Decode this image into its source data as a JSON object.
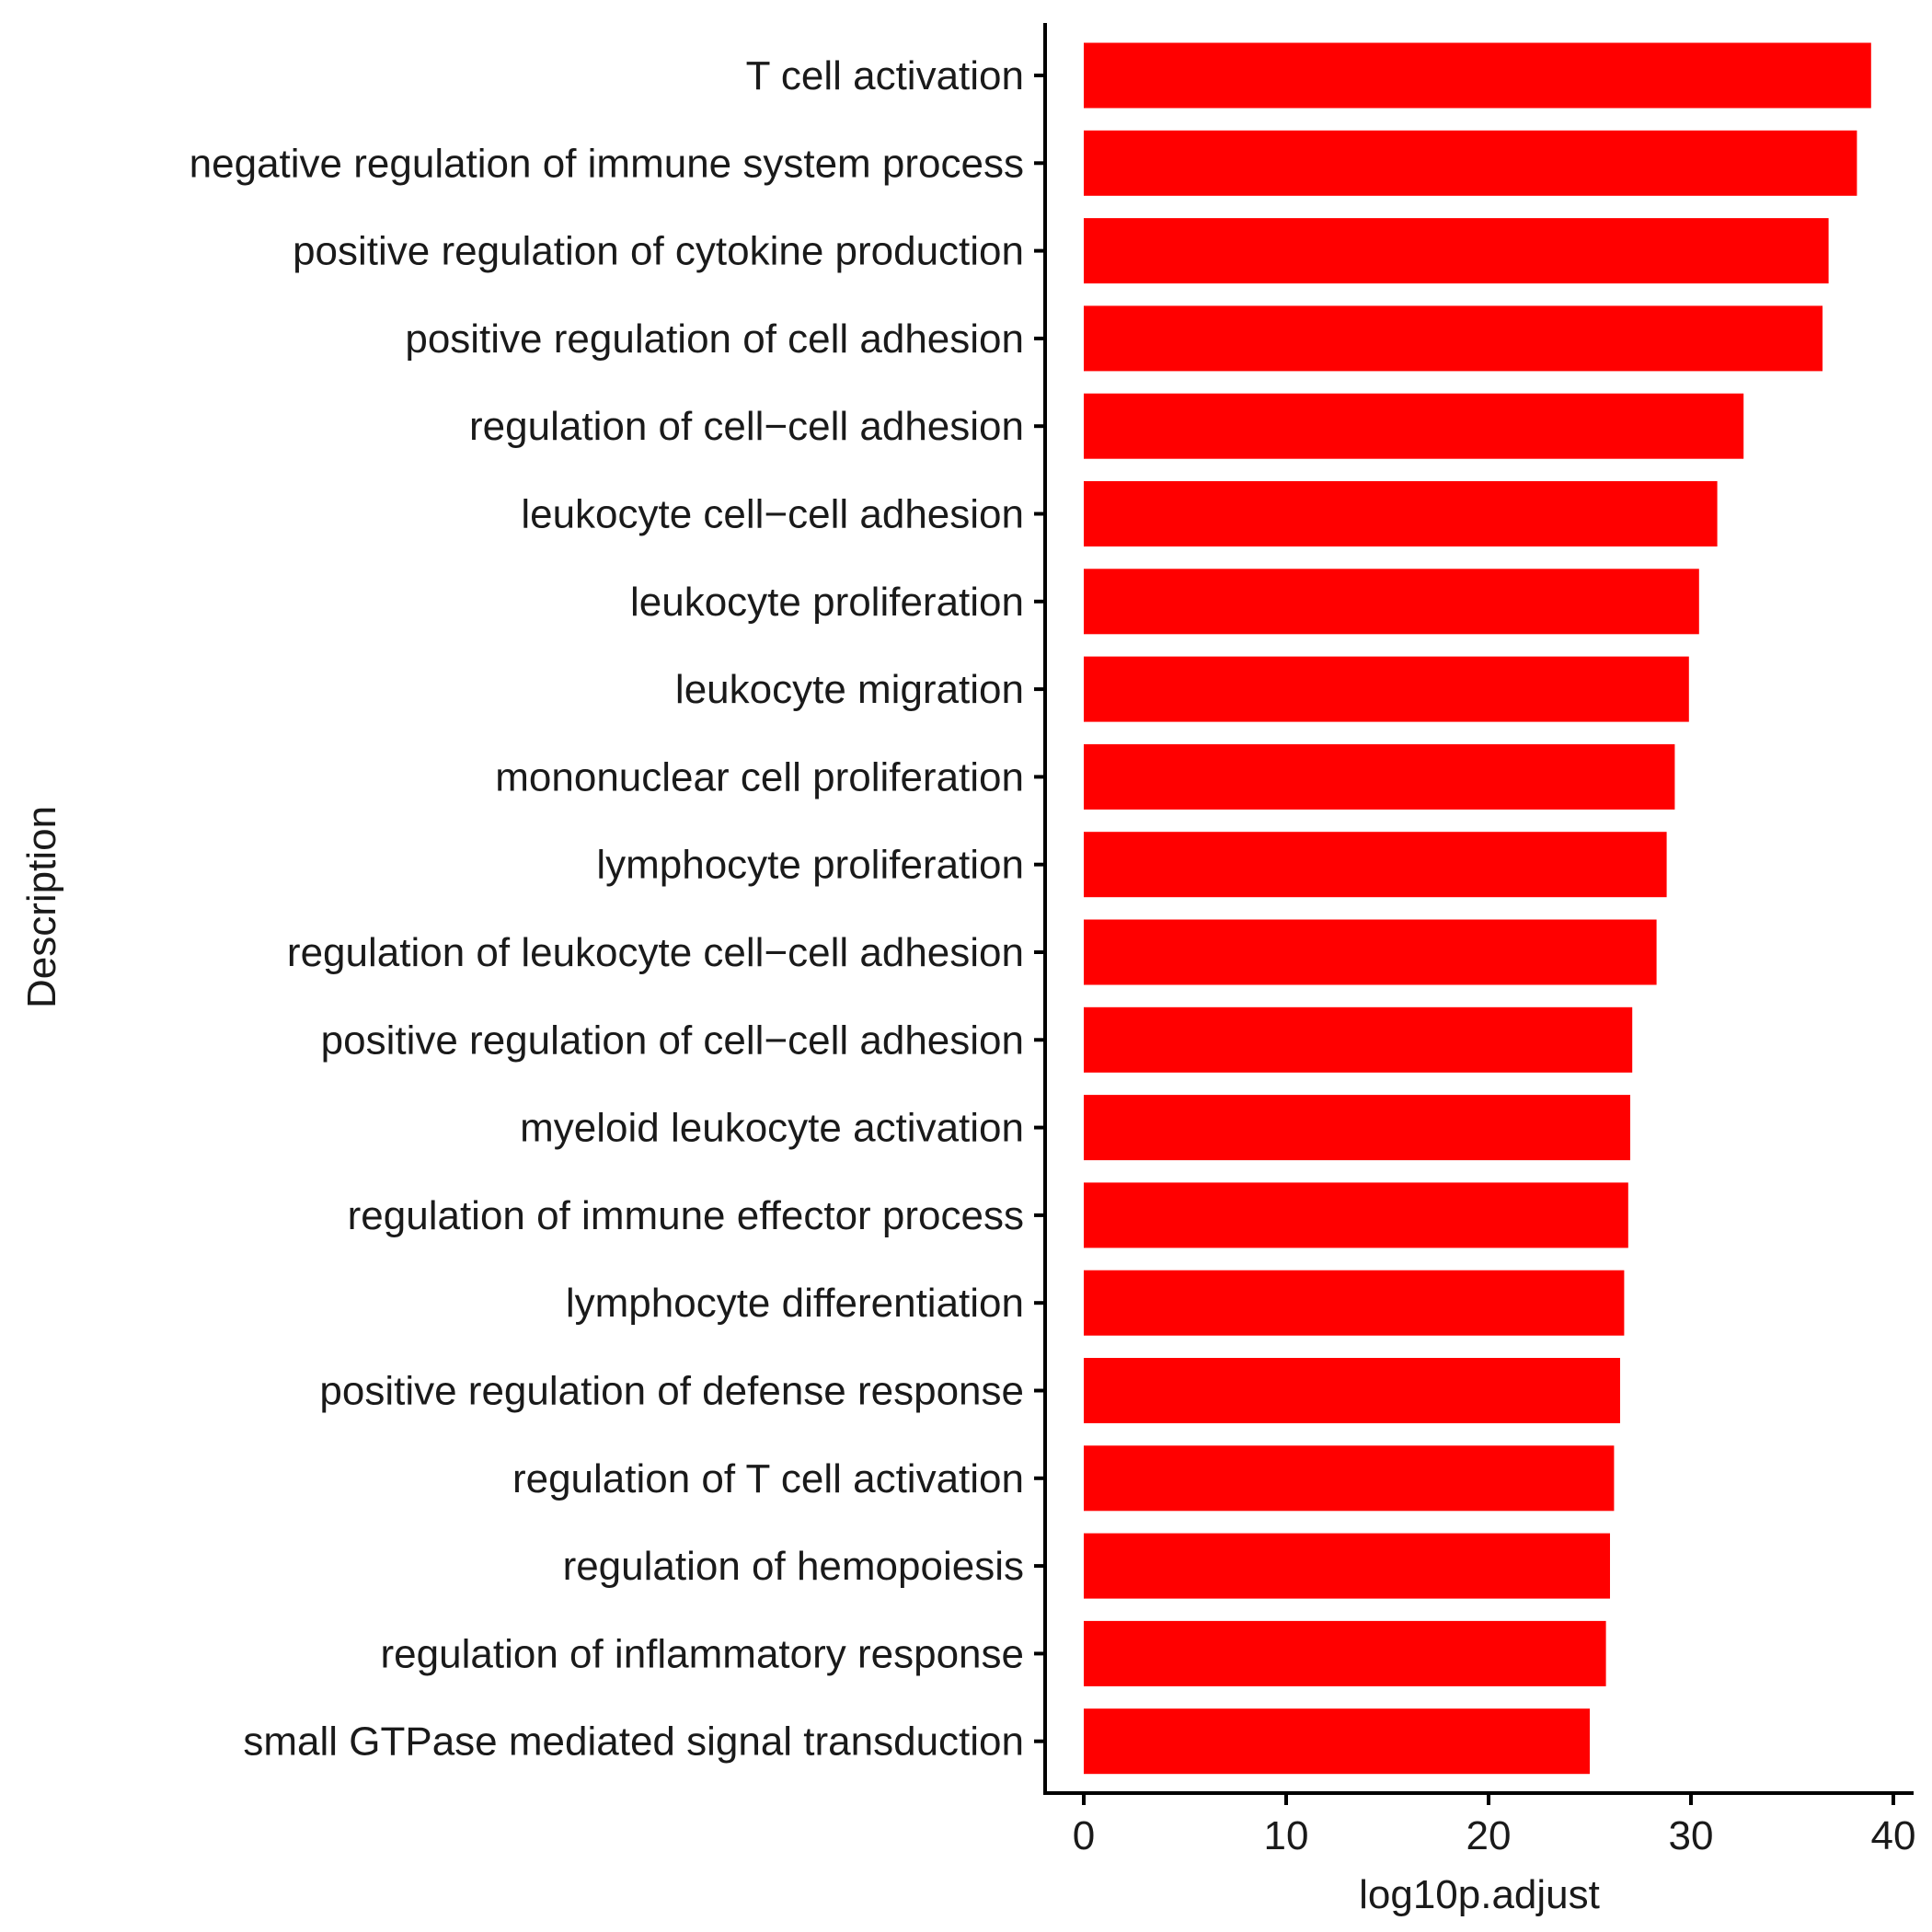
{
  "chart_data": {
    "type": "bar",
    "orientation": "horizontal",
    "categories": [
      "T cell activation",
      "negative regulation of immune system process",
      "positive regulation of cytokine production",
      "positive regulation of cell adhesion",
      "regulation of cell−cell adhesion",
      "leukocyte cell−cell adhesion",
      "leukocyte proliferation",
      "leukocyte migration",
      "mononuclear cell proliferation",
      "lymphocyte proliferation",
      "regulation of leukocyte cell−cell adhesion",
      "positive regulation of cell−cell adhesion",
      "myeloid leukocyte activation",
      "regulation of immune effector process",
      "lymphocyte differentiation",
      "positive regulation of defense response",
      "regulation of T cell activation",
      "regulation of hemopoiesis",
      "regulation of inflammatory response",
      "small GTPase mediated signal transduction"
    ],
    "values": [
      38.9,
      38.2,
      36.8,
      36.5,
      32.6,
      31.3,
      30.4,
      29.9,
      29.2,
      28.8,
      28.3,
      27.1,
      27.0,
      26.9,
      26.7,
      26.5,
      26.2,
      26.0,
      25.8,
      25.0
    ],
    "xlabel": "log10p.adjust",
    "ylabel": "Description",
    "xlim": [
      0,
      40
    ],
    "xticks": [
      0,
      10,
      20,
      30,
      40
    ],
    "bar_color": "#ff0000",
    "grid": false,
    "legend": "none"
  }
}
